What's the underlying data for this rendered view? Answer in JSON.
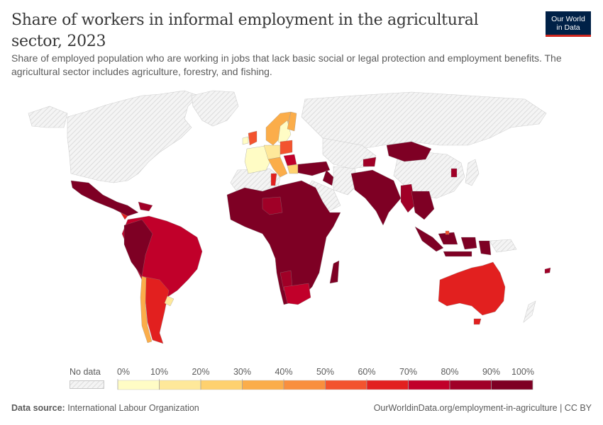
{
  "header": {
    "title": "Share of workers in informal employment in the agricultural sector, 2023",
    "subtitle": "Share of employed population who are working in jobs that lack basic social or legal protection and employment benefits. The agricultural sector includes agriculture, forestry, and fishing.",
    "logo_line1": "Our World",
    "logo_line2": "in Data"
  },
  "legend": {
    "no_data_label": "No data",
    "ticks": [
      "0%",
      "10%",
      "20%",
      "30%",
      "40%",
      "50%",
      "60%",
      "70%",
      "80%",
      "90%",
      "100%"
    ],
    "colors": [
      "#fffcc5",
      "#fee89a",
      "#fed16f",
      "#fbad4a",
      "#f98f3e",
      "#f3532e",
      "#e2201f",
      "#c1002a",
      "#a00027",
      "#7e0024"
    ]
  },
  "footer": {
    "source_label": "Data source:",
    "source_value": "International Labour Organization",
    "url": "OurWorldinData.org/employment-in-agriculture | CC BY"
  },
  "chart_data": {
    "type": "heatmap",
    "subtype": "choropleth-world-map",
    "title": "Share of workers in informal employment in the agricultural sector, 2023",
    "subtitle": "Share of employed population who are working in jobs that lack basic social or legal protection and employment benefits. The agricultural sector includes agriculture, forestry, and fishing.",
    "value_unit": "%",
    "scale": {
      "min": 0,
      "max": 100,
      "step": 10,
      "bins": [
        "0-10",
        "10-20",
        "20-30",
        "30-40",
        "40-50",
        "50-60",
        "60-70",
        "70-80",
        "80-90",
        "90-100"
      ]
    },
    "no_data_regions": [
      "Canada",
      "United States",
      "Greenland",
      "Russia",
      "China",
      "Japan",
      "Algeria",
      "Libya",
      "Saudi Arabia",
      "Iran",
      "Kazakhstan",
      "DR Congo",
      "Gabon",
      "South Sudan",
      "Somalia",
      "Papua New Guinea",
      "New Zealand",
      "Western Sahara"
    ],
    "approximate_bins": [
      {
        "region": "Mexico",
        "bin": "90-100"
      },
      {
        "region": "Central America",
        "bin": "90-100"
      },
      {
        "region": "Costa Rica",
        "bin": "60-70"
      },
      {
        "region": "Venezuela",
        "bin": "90-100"
      },
      {
        "region": "Colombia",
        "bin": "80-90"
      },
      {
        "region": "Peru",
        "bin": "90-100"
      },
      {
        "region": "Bolivia",
        "bin": "90-100"
      },
      {
        "region": "Paraguay",
        "bin": "90-100"
      },
      {
        "region": "Brazil",
        "bin": "70-80"
      },
      {
        "region": "Argentina",
        "bin": "60-70"
      },
      {
        "region": "Chile",
        "bin": "30-40"
      },
      {
        "region": "Uruguay",
        "bin": "10-20"
      },
      {
        "region": "United Kingdom",
        "bin": "50-60"
      },
      {
        "region": "Ireland",
        "bin": "0-10"
      },
      {
        "region": "France",
        "bin": "0-10"
      },
      {
        "region": "Spain",
        "bin": "0-10"
      },
      {
        "region": "Germany",
        "bin": "10-20"
      },
      {
        "region": "Poland",
        "bin": "50-60"
      },
      {
        "region": "Norway",
        "bin": "30-40"
      },
      {
        "region": "Sweden",
        "bin": "0-10"
      },
      {
        "region": "Finland",
        "bin": "30-40"
      },
      {
        "region": "Italy",
        "bin": "30-40"
      },
      {
        "region": "Serbia",
        "bin": "70-80"
      },
      {
        "region": "Turkey",
        "bin": "90-100"
      },
      {
        "region": "Tunisia",
        "bin": "60-70"
      },
      {
        "region": "Egypt",
        "bin": "90-100"
      },
      {
        "region": "West Africa",
        "bin": "90-100"
      },
      {
        "region": "Niger",
        "bin": "80-90"
      },
      {
        "region": "Ethiopia",
        "bin": "90-100"
      },
      {
        "region": "Angola",
        "bin": "90-100"
      },
      {
        "region": "Namibia",
        "bin": "80-90"
      },
      {
        "region": "South Africa",
        "bin": "70-80"
      },
      {
        "region": "Madagascar",
        "bin": "90-100"
      },
      {
        "region": "Pakistan",
        "bin": "90-100"
      },
      {
        "region": "India",
        "bin": "90-100"
      },
      {
        "region": "Myanmar",
        "bin": "80-90"
      },
      {
        "region": "Thailand",
        "bin": "90-100"
      },
      {
        "region": "Vietnam",
        "bin": "90-100"
      },
      {
        "region": "Indonesia",
        "bin": "90-100"
      },
      {
        "region": "Mongolia",
        "bin": "90-100"
      },
      {
        "region": "South Korea",
        "bin": "80-90"
      },
      {
        "region": "Kyrgyzstan",
        "bin": "80-90"
      },
      {
        "region": "Yemen",
        "bin": "90-100"
      },
      {
        "region": "Australia",
        "bin": "60-70"
      },
      {
        "region": "Brunei",
        "bin": "50-60"
      }
    ]
  }
}
